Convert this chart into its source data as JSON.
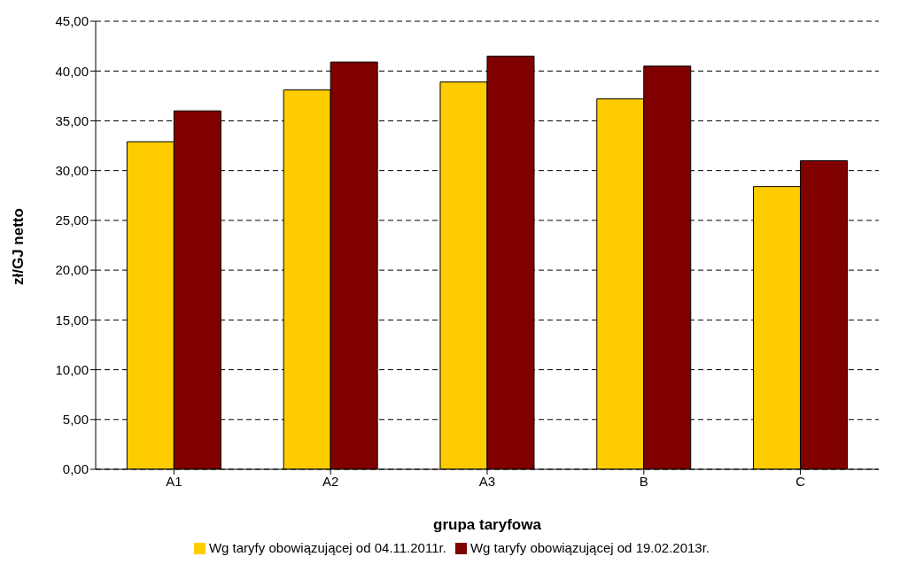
{
  "chart_data": {
    "type": "bar",
    "xlabel": "grupa taryfowa",
    "ylabel": "zł/GJ netto",
    "categories": [
      "A1",
      "A2",
      "A3",
      "B",
      "C"
    ],
    "series": [
      {
        "name": "Wg taryfy obowiązującej od 04.11.2011r.",
        "color": "#ffcc00",
        "values": [
          32.9,
          38.1,
          38.9,
          37.2,
          28.4
        ]
      },
      {
        "name": "Wg taryfy obowiązującej od 19.02.2013r.",
        "color": "#800000",
        "values": [
          36.0,
          40.9,
          41.5,
          40.5,
          31.0
        ]
      }
    ],
    "ylim": [
      0,
      45
    ],
    "yticks": [
      {
        "value": 0,
        "label": "0,00"
      },
      {
        "value": 5,
        "label": "5,00"
      },
      {
        "value": 10,
        "label": "10,00"
      },
      {
        "value": 15,
        "label": "15,00"
      },
      {
        "value": 20,
        "label": "20,00"
      },
      {
        "value": 25,
        "label": "25,00"
      },
      {
        "value": 30,
        "label": "30,00"
      },
      {
        "value": 35,
        "label": "35,00"
      },
      {
        "value": 40,
        "label": "40,00"
      },
      {
        "value": 45,
        "label": "45,00"
      }
    ],
    "grid": "y",
    "legend": "bottom"
  }
}
